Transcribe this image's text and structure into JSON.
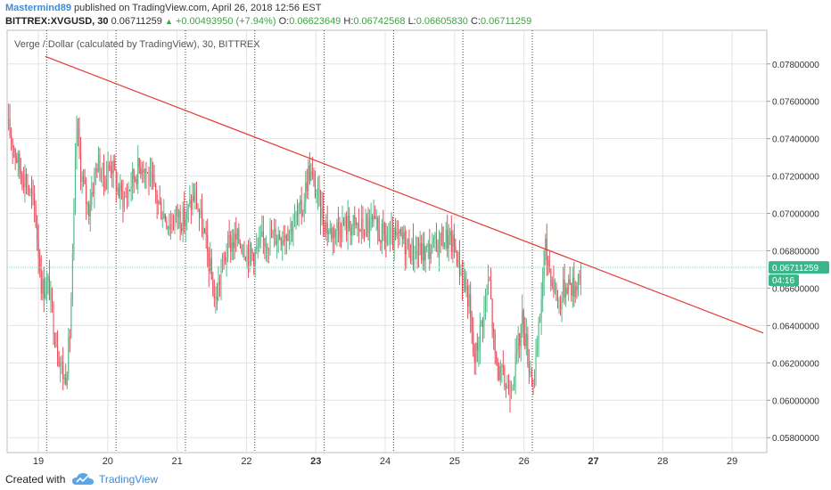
{
  "header": {
    "author": "Mastermind89",
    "published_text": "published on TradingView.com, April 26, 2018 12:56 EST",
    "symbol": "BITTREX:XVGUSD, 30",
    "last": "0.06711259",
    "change": "+0.00493950 (+7.94%)",
    "o_label": "O:",
    "o_value": "0.06623649",
    "h_label": "H:",
    "h_value": "0.06742568",
    "l_label": "L:",
    "l_value": "0.06605830",
    "c_label": "C:",
    "c_value": "0.06711259"
  },
  "footer": {
    "created_with": "Created with",
    "brand": "TradingView"
  },
  "colors": {
    "up": "#53b987",
    "down": "#eb4d5c",
    "trendline": "#e53935",
    "price_label_bg": "#3ab68a",
    "axis_text": "#333333",
    "grid": "#e3e3e3"
  },
  "chart_data": {
    "type": "candlestick",
    "title": "Verge / Dollar (calculated by TradingView), 30, BITTREX",
    "x_ticks": [
      "19",
      "20",
      "21",
      "22",
      "23",
      "24",
      "25",
      "26",
      "27",
      "28",
      "29"
    ],
    "x_bold_ticks": [
      "23",
      "27"
    ],
    "x_range": [
      18.55,
      29.5
    ],
    "y_ticks": [
      "0.05800000",
      "0.06000000",
      "0.06200000",
      "0.06400000",
      "0.06600000",
      "0.06800000",
      "0.07000000",
      "0.07200000",
      "0.07400000",
      "0.07600000",
      "0.07800000"
    ],
    "ylim": [
      0.0572,
      0.0798
    ],
    "grid": true,
    "session_separators": [
      19.12,
      20.12,
      21.12,
      22.12,
      23.12,
      24.12,
      25.12,
      26.12
    ],
    "current_price": 0.06711259,
    "current_price_label": "0.06711259",
    "countdown_label": "04:16",
    "trendline": {
      "x1": 19.1,
      "y1": 0.0784,
      "x2": 29.45,
      "y2": 0.0636
    },
    "price_path": [
      [
        18.55,
        0.0747
      ],
      [
        18.62,
        0.074
      ],
      [
        18.72,
        0.0725
      ],
      [
        18.82,
        0.0718
      ],
      [
        18.95,
        0.0702
      ],
      [
        19.05,
        0.066
      ],
      [
        19.15,
        0.0662
      ],
      [
        19.22,
        0.064
      ],
      [
        19.3,
        0.0624
      ],
      [
        19.38,
        0.061
      ],
      [
        19.45,
        0.0632
      ],
      [
        19.5,
        0.068
      ],
      [
        19.55,
        0.0748
      ],
      [
        19.62,
        0.072
      ],
      [
        19.72,
        0.0702
      ],
      [
        19.85,
        0.0728
      ],
      [
        19.95,
        0.0718
      ],
      [
        20.05,
        0.0728
      ],
      [
        20.15,
        0.0712
      ],
      [
        20.25,
        0.0708
      ],
      [
        20.35,
        0.0718
      ],
      [
        20.5,
        0.0728
      ],
      [
        20.6,
        0.0718
      ],
      [
        20.75,
        0.0704
      ],
      [
        20.9,
        0.0694
      ],
      [
        21.0,
        0.07
      ],
      [
        21.1,
        0.0696
      ],
      [
        21.25,
        0.071
      ],
      [
        21.35,
        0.0695
      ],
      [
        21.45,
        0.0676
      ],
      [
        21.55,
        0.0652
      ],
      [
        21.65,
        0.0672
      ],
      [
        21.75,
        0.0684
      ],
      [
        21.9,
        0.0686
      ],
      [
        22.05,
        0.0678
      ],
      [
        22.15,
        0.068
      ],
      [
        22.25,
        0.0686
      ],
      [
        22.4,
        0.0688
      ],
      [
        22.55,
        0.069
      ],
      [
        22.7,
        0.0696
      ],
      [
        22.8,
        0.0702
      ],
      [
        22.9,
        0.0724
      ],
      [
        23.0,
        0.0712
      ],
      [
        23.1,
        0.0698
      ],
      [
        23.2,
        0.069
      ],
      [
        23.35,
        0.0694
      ],
      [
        23.5,
        0.0694
      ],
      [
        23.65,
        0.0692
      ],
      [
        23.8,
        0.0694
      ],
      [
        23.95,
        0.0688
      ],
      [
        24.1,
        0.0685
      ],
      [
        24.25,
        0.0686
      ],
      [
        24.4,
        0.068
      ],
      [
        24.55,
        0.0679
      ],
      [
        24.7,
        0.0682
      ],
      [
        24.85,
        0.0688
      ],
      [
        25.0,
        0.0682
      ],
      [
        25.1,
        0.0668
      ],
      [
        25.2,
        0.0655
      ],
      [
        25.28,
        0.062
      ],
      [
        25.38,
        0.064
      ],
      [
        25.5,
        0.0665
      ],
      [
        25.58,
        0.0622
      ],
      [
        25.68,
        0.0612
      ],
      [
        25.78,
        0.0606
      ],
      [
        25.88,
        0.062
      ],
      [
        25.98,
        0.0645
      ],
      [
        26.08,
        0.0618
      ],
      [
        26.15,
        0.061
      ],
      [
        26.22,
        0.064
      ],
      [
        26.3,
        0.0682
      ],
      [
        26.4,
        0.0666
      ],
      [
        26.5,
        0.0652
      ],
      [
        26.62,
        0.0664
      ],
      [
        26.72,
        0.066
      ],
      [
        26.82,
        0.0671
      ]
    ]
  }
}
